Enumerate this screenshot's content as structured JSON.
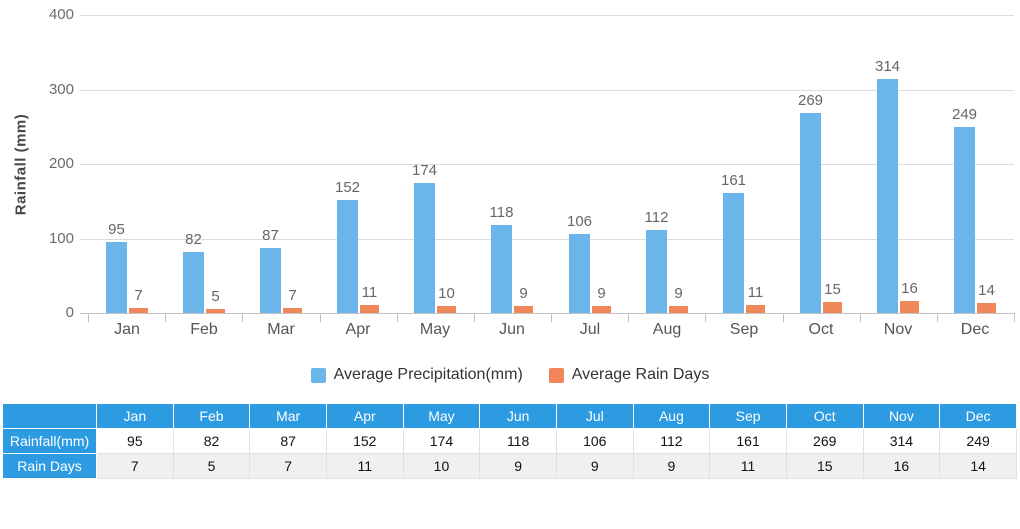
{
  "chart_data": {
    "type": "bar",
    "title": "",
    "categories": [
      "Jan",
      "Feb",
      "Mar",
      "Apr",
      "May",
      "Jun",
      "Jul",
      "Aug",
      "Sep",
      "Oct",
      "Nov",
      "Dec"
    ],
    "series": [
      {
        "name": "Average Precipitation(mm)",
        "color": "#6cb5ea",
        "values": [
          95,
          82,
          87,
          152,
          174,
          118,
          106,
          112,
          161,
          269,
          314,
          249
        ]
      },
      {
        "name": "Average Rain Days",
        "color": "#f0875a",
        "values": [
          7,
          5,
          7,
          11,
          10,
          9,
          9,
          9,
          11,
          15,
          16,
          14
        ]
      }
    ],
    "xlabel": "",
    "ylabel": "Rainfall (mm)",
    "ylim": [
      0,
      400
    ],
    "yticks": [
      0,
      100,
      200,
      300,
      400
    ],
    "grid": true,
    "legend_position": "bottom"
  },
  "table": {
    "corner_label": "",
    "header_row": [
      "Jan",
      "Feb",
      "Mar",
      "Apr",
      "May",
      "Jun",
      "Jul",
      "Aug",
      "Sep",
      "Oct",
      "Nov",
      "Dec"
    ],
    "rows": [
      {
        "label": "Rainfall(mm)",
        "values": [
          "95",
          "82",
          "87",
          "152",
          "174",
          "118",
          "106",
          "112",
          "161",
          "269",
          "314",
          "249"
        ]
      },
      {
        "label": "Rain Days",
        "values": [
          "7",
          "5",
          "7",
          "11",
          "10",
          "9",
          "9",
          "9",
          "11",
          "15",
          "16",
          "14"
        ]
      }
    ]
  },
  "colors": {
    "precipitation_bar": "#6cb5ea",
    "rain_days_bar": "#f0875a",
    "table_header": "#2d9be2",
    "gridline": "#dcdcdc",
    "axis": "#c2c2c2",
    "tick_text": "#6b6b6b",
    "month_text": "#555555",
    "value_text": "#666666",
    "legend_text": "#333333",
    "alt_row": "#f0f0f0"
  }
}
